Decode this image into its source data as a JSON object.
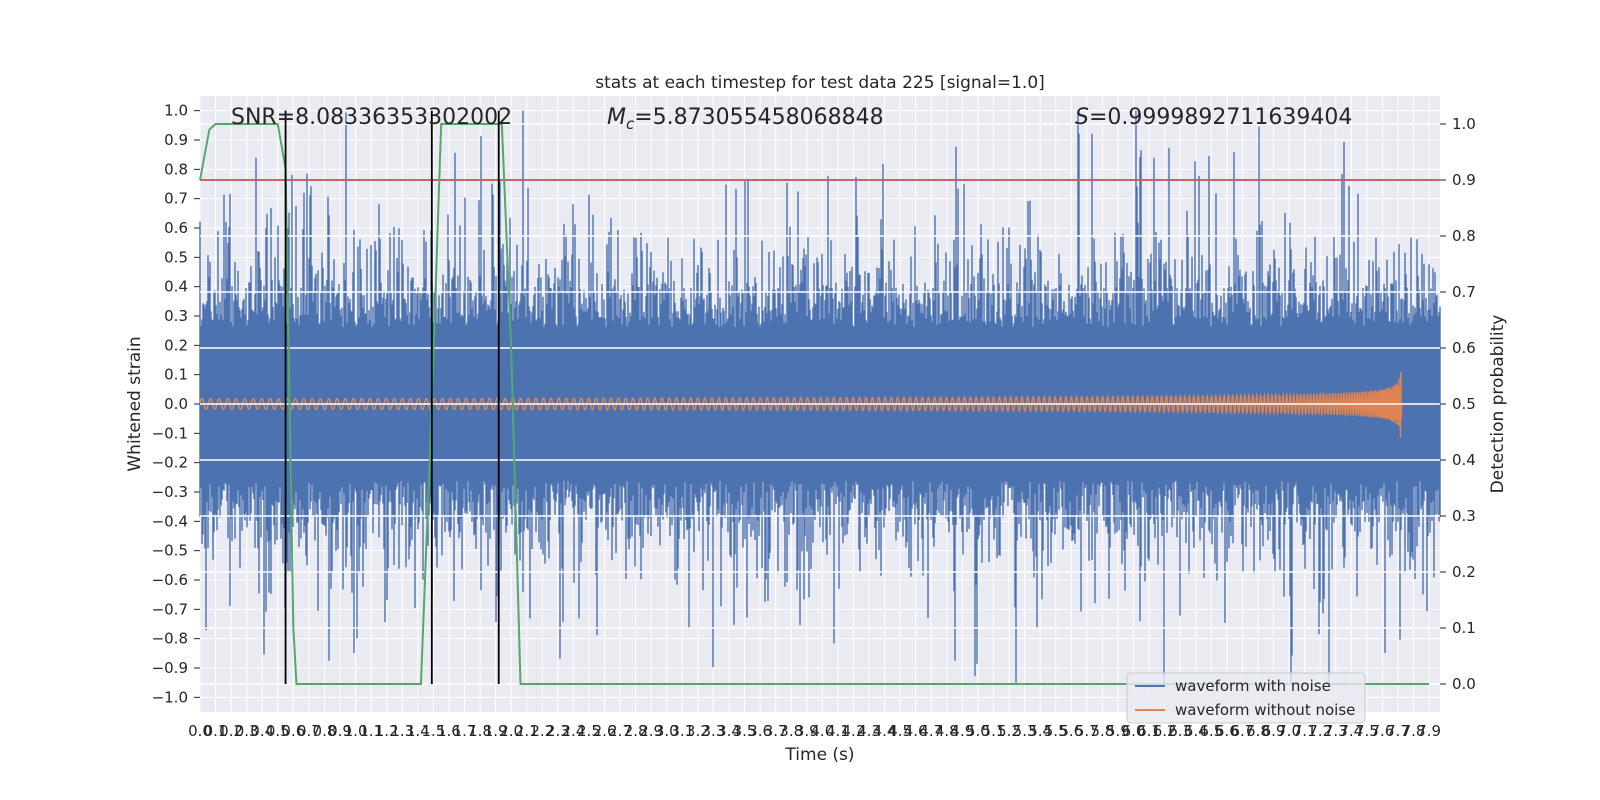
{
  "chart_data": {
    "type": "line",
    "title": "stats at each timestep for test data 225 [signal=1.0]",
    "xlabel": "Time (s)",
    "ylabel_left": "Whitened strain",
    "ylabel_right": "Detection probability",
    "xlim": [
      0.0,
      7.97
    ],
    "ylim_left": [
      -1.05,
      1.05
    ],
    "ylim_right": [
      -0.05,
      1.05
    ],
    "x_ticks": [
      "0.0",
      "0.1",
      "0.2",
      "0.3",
      "0.4",
      "0.5",
      "0.6",
      "0.7",
      "0.8",
      "0.9",
      "1.0",
      "1.1",
      "1.2",
      "1.3",
      "1.4",
      "1.5",
      "1.6",
      "1.7",
      "1.8",
      "1.9",
      "2.0",
      "2.1",
      "2.2",
      "2.3",
      "2.4",
      "2.5",
      "2.6",
      "2.7",
      "2.8",
      "2.9",
      "3.0",
      "3.1",
      "3.2",
      "3.3",
      "3.4",
      "3.5",
      "3.6",
      "3.7",
      "3.8",
      "3.9",
      "4.0",
      "4.1",
      "4.2",
      "4.3",
      "4.4",
      "4.5",
      "4.6",
      "4.7",
      "4.8",
      "4.9",
      "5.0",
      "5.1",
      "5.2",
      "5.3",
      "5.4",
      "5.5",
      "5.6",
      "5.7",
      "5.8",
      "5.9",
      "6.0",
      "6.1",
      "6.2",
      "6.3",
      "6.4",
      "6.5",
      "6.6",
      "6.7",
      "6.8",
      "6.9",
      "7.0",
      "7.1",
      "7.2",
      "7.3",
      "7.4",
      "7.5",
      "7.6",
      "7.7",
      "7.8",
      "7.9"
    ],
    "y_ticks_left": [
      "1.0",
      "0.9",
      "0.8",
      "0.7",
      "0.6",
      "0.5",
      "0.4",
      "0.3",
      "0.2",
      "0.1",
      "0.0",
      "−0.1",
      "−0.2",
      "−0.3",
      "−0.4",
      "−0.5",
      "−0.6",
      "−0.7",
      "−0.8",
      "−0.9",
      "−1.0"
    ],
    "y_ticks_right": [
      "1.0",
      "0.9",
      "0.8",
      "0.7",
      "0.6",
      "0.5",
      "0.4",
      "0.3",
      "0.2",
      "0.1",
      "0.0"
    ],
    "annotations": {
      "snr": "SNR=8.08336353302002",
      "mc_symbol": "M",
      "mc_subscript": "c",
      "mc_value": "=5.873055458068848",
      "s_symbol": "S",
      "s_value": "=0.9999892711639404"
    },
    "threshold": {
      "value": 0.9,
      "axis": "right",
      "color": "#c44e52"
    },
    "vertical_lines": [
      0.55,
      1.49,
      1.92
    ],
    "series": [
      {
        "name": "waveform with noise",
        "color": "#4c72b0",
        "axis": "left",
        "kind": "noise",
        "typical_amplitude": 0.35,
        "peak_amplitude": 1.0
      },
      {
        "name": "waveform without noise",
        "color": "#dd8452",
        "axis": "left",
        "kind": "chirp",
        "start_amplitude": 0.018,
        "peak_amplitude": 0.18,
        "peak_time": 7.72
      },
      {
        "name": "",
        "color": "#55a868",
        "axis": "right",
        "kind": "probability",
        "x": [
          0.0,
          0.06,
          0.1,
          0.5,
          0.55,
          0.6,
          0.62,
          0.65,
          1.42,
          1.49,
          1.55,
          1.6,
          1.94,
          2.0,
          2.06,
          7.9
        ],
        "y": [
          0.9,
          0.99,
          1.0,
          1.0,
          0.92,
          0.1,
          0.0,
          0.0,
          0.0,
          0.5,
          1.0,
          1.0,
          1.0,
          0.6,
          0.0,
          0.0
        ]
      }
    ],
    "legend": {
      "placement": "lower-right",
      "entries": [
        "waveform with noise",
        "waveform without noise"
      ]
    },
    "grid": true,
    "colors": {
      "plot_bg": "#eaeaf2",
      "grid": "#ffffff"
    }
  }
}
